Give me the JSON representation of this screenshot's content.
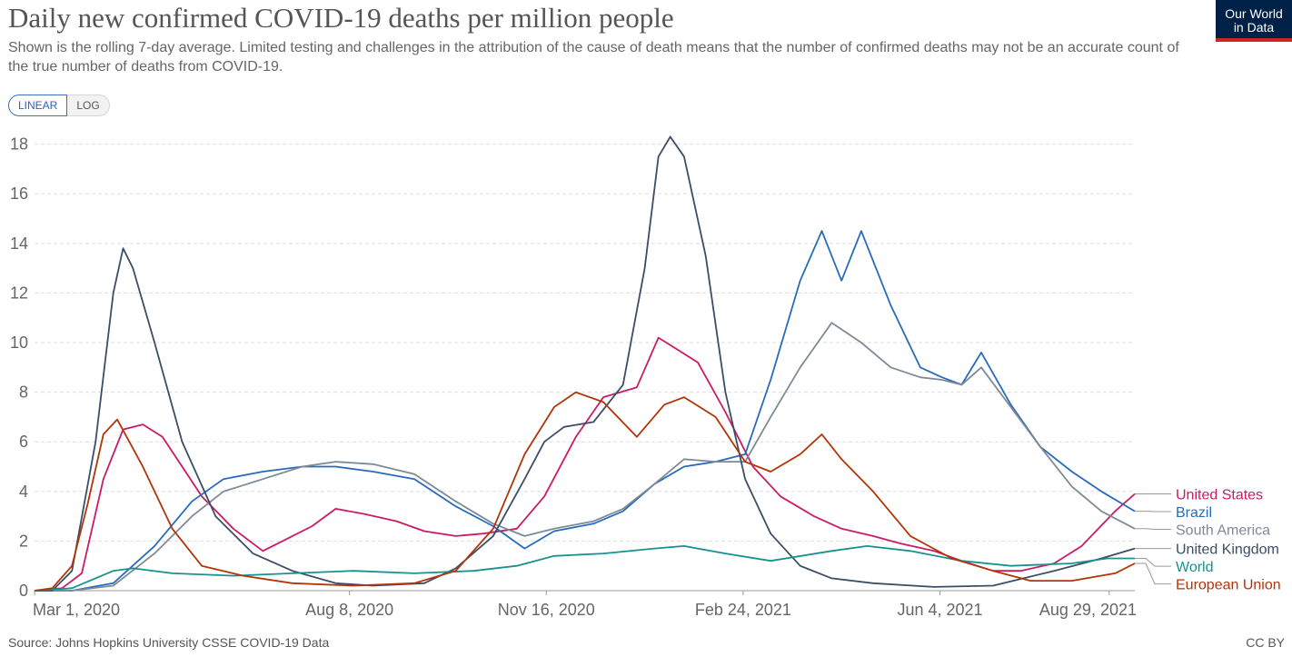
{
  "header": {
    "title": "Daily new confirmed COVID-19 deaths per million people",
    "subtitle": "Shown is the rolling 7-day average. Limited testing and challenges in the attribution of the cause of death means that the number of confirmed deaths may not be an accurate count of the true number of deaths from COVID-19.",
    "logo_line1": "Our World",
    "logo_line2": "in Data"
  },
  "controls": {
    "linear_label": "LINEAR",
    "log_label": "LOG",
    "selected": "LINEAR"
  },
  "footer": {
    "source": "Source: Johns Hopkins University CSSE COVID-19 Data",
    "license": "CC BY"
  },
  "chart_data": {
    "type": "line",
    "title": "Daily new confirmed COVID-19 deaths per million people",
    "xlabel": "",
    "ylabel": "",
    "x_ticks": [
      "Mar 1, 2020",
      "Aug 8, 2020",
      "Nov 16, 2020",
      "Feb 24, 2021",
      "Jun 4, 2021",
      "Aug 29, 2021"
    ],
    "y_ticks": [
      0,
      2,
      4,
      6,
      8,
      10,
      12,
      14,
      16,
      18
    ],
    "ylim": [
      0,
      18.5
    ],
    "xlim": [
      "2020-03-01",
      "2021-09-11"
    ],
    "grid": "horizontal dashed",
    "legend": "right, at line ends",
    "series": [
      {
        "name": "United States",
        "color": "#ca1b64",
        "x": [
          "2020-03-01",
          "2020-03-15",
          "2020-03-25",
          "2020-04-05",
          "2020-04-15",
          "2020-04-25",
          "2020-05-05",
          "2020-05-15",
          "2020-05-25",
          "2020-06-10",
          "2020-06-25",
          "2020-07-05",
          "2020-07-20",
          "2020-08-01",
          "2020-08-15",
          "2020-09-01",
          "2020-09-15",
          "2020-10-01",
          "2020-10-15",
          "2020-11-01",
          "2020-11-15",
          "2020-12-01",
          "2020-12-15",
          "2021-01-01",
          "2021-01-12",
          "2021-01-20",
          "2021-02-01",
          "2021-02-15",
          "2021-03-01",
          "2021-03-15",
          "2021-04-01",
          "2021-04-15",
          "2021-05-01",
          "2021-05-15",
          "2021-06-01",
          "2021-06-15",
          "2021-07-01",
          "2021-07-15",
          "2021-08-01",
          "2021-08-15",
          "2021-09-01",
          "2021-09-11"
        ],
        "y": [
          0,
          0.1,
          0.7,
          4.5,
          6.5,
          6.7,
          6.2,
          5.0,
          3.8,
          2.5,
          1.6,
          2.0,
          2.6,
          3.3,
          3.1,
          2.8,
          2.4,
          2.2,
          2.3,
          2.5,
          3.8,
          6.2,
          7.8,
          8.2,
          10.2,
          9.8,
          9.2,
          7.2,
          5.0,
          3.8,
          3.0,
          2.5,
          2.2,
          1.9,
          1.6,
          1.2,
          0.8,
          0.8,
          1.1,
          1.8,
          3.2,
          3.9
        ]
      },
      {
        "name": "Brazil",
        "color": "#286bbb",
        "x": [
          "2020-03-01",
          "2020-03-20",
          "2020-04-10",
          "2020-05-01",
          "2020-05-20",
          "2020-06-05",
          "2020-06-25",
          "2020-07-15",
          "2020-08-01",
          "2020-08-20",
          "2020-09-10",
          "2020-10-01",
          "2020-10-20",
          "2020-11-05",
          "2020-11-20",
          "2020-12-10",
          "2020-12-25",
          "2021-01-10",
          "2021-01-25",
          "2021-02-10",
          "2021-02-25",
          "2021-03-10",
          "2021-03-25",
          "2021-04-05",
          "2021-04-15",
          "2021-04-25",
          "2021-05-10",
          "2021-05-25",
          "2021-06-05",
          "2021-06-15",
          "2021-06-25",
          "2021-07-10",
          "2021-07-25",
          "2021-08-10",
          "2021-08-25",
          "2021-09-11"
        ],
        "y": [
          0,
          0,
          0.3,
          1.8,
          3.6,
          4.5,
          4.8,
          5.0,
          5.0,
          4.8,
          4.5,
          3.4,
          2.6,
          1.7,
          2.4,
          2.7,
          3.2,
          4.3,
          5.0,
          5.2,
          5.5,
          8.5,
          12.5,
          14.5,
          12.5,
          14.5,
          11.5,
          9.0,
          8.6,
          8.3,
          9.6,
          7.5,
          5.8,
          4.8,
          4.0,
          3.2
        ]
      },
      {
        "name": "South America",
        "color": "#7e8a96",
        "x": [
          "2020-03-01",
          "2020-03-20",
          "2020-04-10",
          "2020-05-01",
          "2020-05-20",
          "2020-06-05",
          "2020-06-25",
          "2020-07-15",
          "2020-08-01",
          "2020-08-20",
          "2020-09-10",
          "2020-10-01",
          "2020-10-20",
          "2020-11-05",
          "2020-11-20",
          "2020-12-10",
          "2020-12-25",
          "2021-01-10",
          "2021-01-25",
          "2021-02-10",
          "2021-02-25",
          "2021-03-10",
          "2021-03-25",
          "2021-04-10",
          "2021-04-25",
          "2021-05-10",
          "2021-05-25",
          "2021-06-05",
          "2021-06-15",
          "2021-06-25",
          "2021-07-10",
          "2021-07-25",
          "2021-08-10",
          "2021-08-25",
          "2021-09-11"
        ],
        "y": [
          0,
          0,
          0.2,
          1.5,
          3.0,
          4.0,
          4.5,
          5.0,
          5.2,
          5.1,
          4.7,
          3.6,
          2.7,
          2.2,
          2.5,
          2.8,
          3.3,
          4.3,
          5.3,
          5.2,
          5.2,
          7.0,
          9.0,
          10.8,
          10.0,
          9.0,
          8.6,
          8.5,
          8.3,
          9.0,
          7.4,
          5.8,
          4.2,
          3.2,
          2.5
        ]
      },
      {
        "name": "United Kingdom",
        "color": "#3b4e66",
        "x": [
          "2020-03-01",
          "2020-03-10",
          "2020-03-20",
          "2020-04-01",
          "2020-04-10",
          "2020-04-15",
          "2020-04-20",
          "2020-05-01",
          "2020-05-15",
          "2020-06-01",
          "2020-06-20",
          "2020-07-10",
          "2020-08-01",
          "2020-08-20",
          "2020-09-15",
          "2020-10-01",
          "2020-10-20",
          "2020-11-05",
          "2020-11-15",
          "2020-11-25",
          "2020-12-10",
          "2020-12-25",
          "2021-01-05",
          "2021-01-12",
          "2021-01-18",
          "2021-01-25",
          "2021-02-05",
          "2021-02-15",
          "2021-02-25",
          "2021-03-10",
          "2021-03-25",
          "2021-04-10",
          "2021-05-01",
          "2021-06-01",
          "2021-07-01",
          "2021-08-01",
          "2021-08-25",
          "2021-09-11"
        ],
        "y": [
          0,
          0,
          0.8,
          6.0,
          12.0,
          13.8,
          13.0,
          10.0,
          6.0,
          3.0,
          1.5,
          0.8,
          0.3,
          0.2,
          0.3,
          0.9,
          2.2,
          4.5,
          6.0,
          6.6,
          6.8,
          8.3,
          13.0,
          17.5,
          18.3,
          17.5,
          13.5,
          8.0,
          4.5,
          2.3,
          1.0,
          0.5,
          0.3,
          0.15,
          0.2,
          0.8,
          1.3,
          1.7
        ]
      },
      {
        "name": "World",
        "color": "#17928f",
        "x": [
          "2020-03-01",
          "2020-03-20",
          "2020-04-10",
          "2020-04-20",
          "2020-05-10",
          "2020-06-10",
          "2020-07-10",
          "2020-08-10",
          "2020-09-10",
          "2020-10-10",
          "2020-11-01",
          "2020-11-20",
          "2020-12-15",
          "2021-01-10",
          "2021-01-25",
          "2021-02-15",
          "2021-03-10",
          "2021-04-10",
          "2021-04-28",
          "2021-05-20",
          "2021-06-15",
          "2021-07-10",
          "2021-08-10",
          "2021-08-28",
          "2021-09-11"
        ],
        "y": [
          0,
          0.1,
          0.8,
          0.9,
          0.7,
          0.6,
          0.7,
          0.8,
          0.7,
          0.8,
          1.0,
          1.4,
          1.5,
          1.7,
          1.8,
          1.5,
          1.2,
          1.6,
          1.8,
          1.6,
          1.2,
          1.0,
          1.1,
          1.3,
          1.3
        ]
      },
      {
        "name": "European Union",
        "color": "#b13507",
        "x": [
          "2020-03-01",
          "2020-03-10",
          "2020-03-20",
          "2020-03-28",
          "2020-04-05",
          "2020-04-12",
          "2020-04-25",
          "2020-05-10",
          "2020-05-25",
          "2020-06-15",
          "2020-07-10",
          "2020-08-10",
          "2020-09-10",
          "2020-10-01",
          "2020-10-20",
          "2020-11-05",
          "2020-11-20",
          "2020-12-01",
          "2020-12-15",
          "2021-01-01",
          "2021-01-15",
          "2021-01-25",
          "2021-02-10",
          "2021-02-25",
          "2021-03-10",
          "2021-03-25",
          "2021-04-05",
          "2021-04-15",
          "2021-05-01",
          "2021-05-20",
          "2021-06-10",
          "2021-07-01",
          "2021-07-20",
          "2021-08-10",
          "2021-09-01",
          "2021-09-11"
        ],
        "y": [
          0,
          0.1,
          1.0,
          3.5,
          6.3,
          6.9,
          5.0,
          2.5,
          1.0,
          0.6,
          0.3,
          0.2,
          0.3,
          0.8,
          2.5,
          5.5,
          7.4,
          8.0,
          7.6,
          6.2,
          7.5,
          7.8,
          7.0,
          5.2,
          4.8,
          5.5,
          6.3,
          5.3,
          4.0,
          2.2,
          1.3,
          0.8,
          0.4,
          0.4,
          0.7,
          1.1
        ]
      }
    ]
  }
}
